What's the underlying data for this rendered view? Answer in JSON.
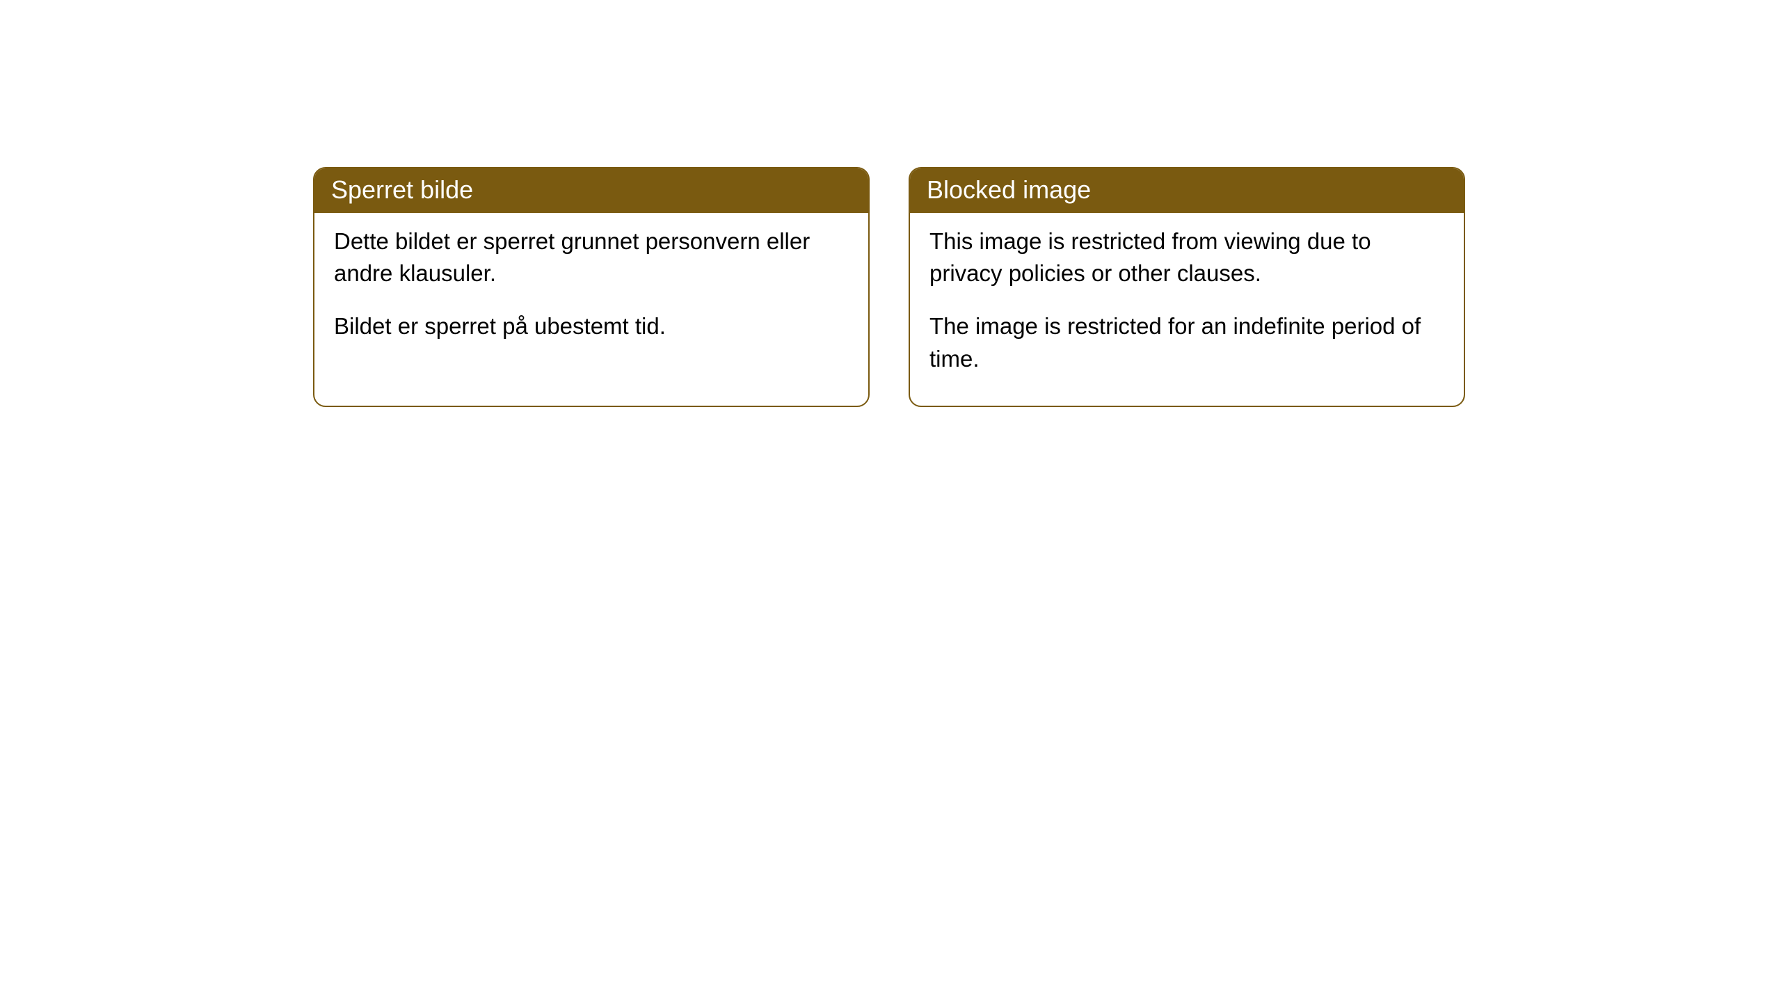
{
  "cards": [
    {
      "title": "Sperret bilde",
      "paragraph1": "Dette bildet er sperret grunnet personvern eller andre klausuler.",
      "paragraph2": "Bildet er sperret på ubestemt tid."
    },
    {
      "title": "Blocked image",
      "paragraph1": "This image is restricted from viewing due to privacy policies or other clauses.",
      "paragraph2": "The image is restricted for an indefinite period of time."
    }
  ],
  "styling": {
    "header_bg_color": "#7a5a10",
    "header_text_color": "#ffffff",
    "border_color": "#7a5a10",
    "card_bg_color": "#ffffff",
    "body_text_color": "#000000",
    "border_radius": "18px",
    "title_fontsize": "36px",
    "body_fontsize": "33px"
  }
}
